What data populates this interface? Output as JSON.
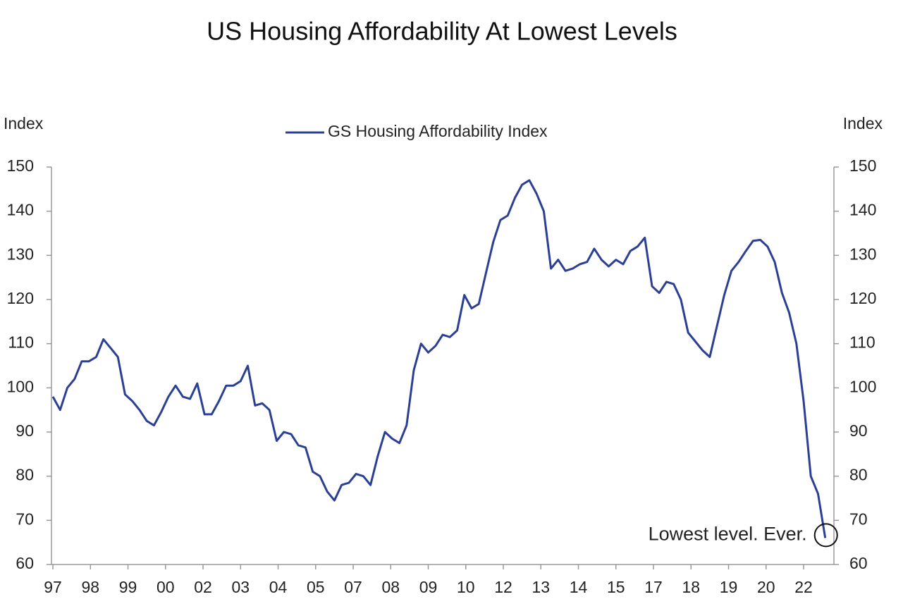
{
  "chart_data": {
    "type": "line",
    "title": "US Housing Affordability At Lowest Levels",
    "ylabel": "Index",
    "y2label": "Index",
    "annotation": "Lowest level. Ever.",
    "xlim": [
      1996.95,
      2024.05
    ],
    "xticks": [
      {
        "value": 1997,
        "label": "97"
      },
      {
        "value": 1998.3,
        "label": "98"
      },
      {
        "value": 1999.6,
        "label": "99"
      },
      {
        "value": 2000.9,
        "label": "00"
      },
      {
        "value": 2002.2,
        "label": "02"
      },
      {
        "value": 2003.5,
        "label": "03"
      },
      {
        "value": 2004.8,
        "label": "04"
      },
      {
        "value": 2006.1,
        "label": "05"
      },
      {
        "value": 2007.4,
        "label": "07"
      },
      {
        "value": 2008.7,
        "label": "08"
      },
      {
        "value": 2010,
        "label": "09"
      },
      {
        "value": 2011.3,
        "label": "10"
      },
      {
        "value": 2012.6,
        "label": "12"
      },
      {
        "value": 2013.9,
        "label": "13"
      },
      {
        "value": 2015.2,
        "label": "14"
      },
      {
        "value": 2016.5,
        "label": "15"
      },
      {
        "value": 2017.8,
        "label": "17"
      },
      {
        "value": 2019.1,
        "label": "18"
      },
      {
        "value": 2020.4,
        "label": "19"
      },
      {
        "value": 2021.7,
        "label": "20"
      },
      {
        "value": 2023,
        "label": "22"
      }
    ],
    "ylim": [
      60,
      150
    ],
    "yticks": [
      60,
      70,
      80,
      90,
      100,
      110,
      120,
      130,
      140,
      150
    ],
    "y2lim": [
      60,
      150
    ],
    "y2ticks": [
      60,
      70,
      80,
      90,
      100,
      110,
      120,
      130,
      140,
      150
    ],
    "legend": "top",
    "x": [
      1997,
      1997.25,
      1997.5,
      1997.75,
      1998,
      1998.25,
      1998.5,
      1998.75,
      1999,
      1999.25,
      1999.5,
      1999.75,
      2000,
      2000.25,
      2000.5,
      2000.75,
      2001,
      2001.25,
      2001.5,
      2001.75,
      2002,
      2002.25,
      2002.5,
      2002.75,
      2003,
      2003.25,
      2003.5,
      2003.75,
      2004,
      2004.25,
      2004.5,
      2004.75,
      2005,
      2005.25,
      2005.5,
      2005.75,
      2006,
      2006.25,
      2006.5,
      2006.75,
      2007,
      2007.25,
      2007.5,
      2007.75,
      2008,
      2008.25,
      2008.5,
      2008.75,
      2009,
      2009.25,
      2009.5,
      2009.75,
      2010,
      2010.25,
      2010.5,
      2010.75,
      2011,
      2011.25,
      2011.5,
      2011.75,
      2012,
      2012.25,
      2012.5,
      2012.75,
      2013,
      2013.25,
      2013.5,
      2013.75,
      2014,
      2014.25,
      2014.5,
      2014.75,
      2015,
      2015.25,
      2015.5,
      2015.75,
      2016,
      2016.25,
      2016.5,
      2016.75,
      2017,
      2017.25,
      2017.5,
      2017.75,
      2018,
      2018.25,
      2018.5,
      2018.75,
      2019,
      2019.25,
      2019.5,
      2019.75,
      2020,
      2020.25,
      2020.5,
      2020.75,
      2021,
      2021.25,
      2021.5,
      2021.75,
      2022,
      2022.25,
      2022.5,
      2022.75,
      2023,
      2023.25,
      2023.5,
      2023.75
    ],
    "series": [
      {
        "name": "GS Housing Affordability Index",
        "color": "#2b3f94",
        "values": [
          98,
          95,
          100,
          102,
          106,
          106,
          107,
          111,
          109,
          107,
          98.5,
          97,
          95,
          92.5,
          91.5,
          94.5,
          98,
          100.5,
          98,
          97.5,
          101,
          94,
          94,
          97,
          100.5,
          100.5,
          101.5,
          105,
          96,
          96.5,
          95,
          88,
          90,
          89.5,
          87,
          86.5,
          81,
          80,
          76.5,
          74.5,
          78,
          78.5,
          80.5,
          80,
          78,
          84.5,
          90,
          88.5,
          87.5,
          91.5,
          104,
          110,
          108,
          109.5,
          112,
          111.5,
          113,
          121,
          118,
          119,
          126,
          133,
          138,
          139,
          143,
          146,
          147,
          144,
          140,
          127,
          129,
          126.5,
          127,
          128,
          128.5,
          131.5,
          129,
          127.5,
          129,
          128,
          131,
          132,
          134,
          123,
          121.5,
          124,
          123.5,
          120,
          112.5,
          110.5,
          108.5,
          107,
          114,
          121,
          126.5,
          128.5,
          131,
          133.3,
          133.5,
          132,
          128.5,
          121.5,
          117,
          110,
          97,
          80,
          76,
          66
        ]
      }
    ]
  }
}
